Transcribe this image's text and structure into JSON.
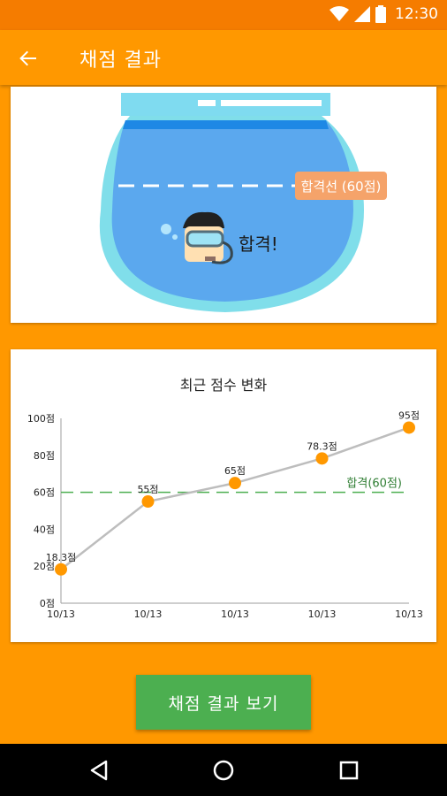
{
  "status_bar": {
    "time": "12:30"
  },
  "app_bar": {
    "title": "채점 결과"
  },
  "fishbowl": {
    "pass_line_label": "합격선 (60점)",
    "result_text": "합격!"
  },
  "chart_data": {
    "type": "line",
    "title": "최근 점수 변화",
    "categories": [
      "10/13",
      "10/13",
      "10/13",
      "10/13",
      "10/13"
    ],
    "series": [
      {
        "values": [
          18.3,
          55,
          65,
          78.3,
          95
        ]
      }
    ],
    "data_labels": [
      "18.3점",
      "55점",
      "65점",
      "78.3점",
      "95점"
    ],
    "y_ticks": [
      "0점",
      "20점",
      "40점",
      "60점",
      "80점",
      "100점"
    ],
    "ylim": [
      0,
      100
    ],
    "reference_line": {
      "value": 60,
      "label": "합격(60점)",
      "color": "#4CAF50"
    },
    "line_color": "#BDBDBD",
    "point_color": "#FF9800",
    "grid": false
  },
  "actions": {
    "view_result_label": "채점 결과 보기"
  },
  "colors": {
    "primary": "#FF9800",
    "primary_dark": "#F57C00",
    "accent": "#4CAF50",
    "water": "#64B5F6",
    "bowl": "#80DEEA"
  }
}
